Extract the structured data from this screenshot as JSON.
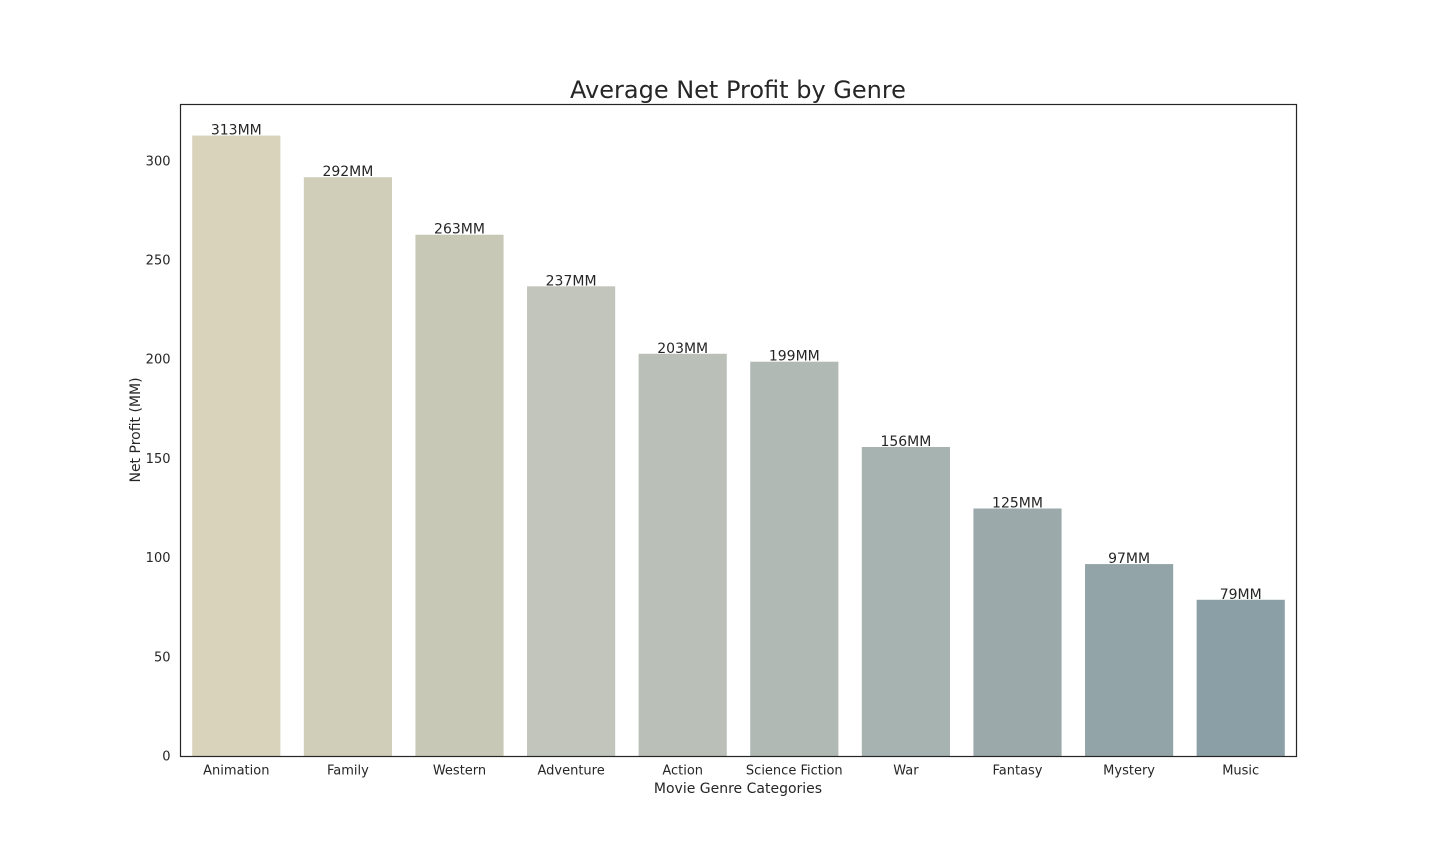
{
  "chart_data": {
    "type": "bar",
    "title": "Average Net Profit by Genre",
    "xlabel": "Movie Genre Categories",
    "ylabel": "Net Profit (MM)",
    "categories": [
      "Animation",
      "Family",
      "Western",
      "Adventure",
      "Action",
      "Science Fiction",
      "War",
      "Fantasy",
      "Mystery",
      "Music"
    ],
    "values": [
      313,
      292,
      263,
      237,
      203,
      199,
      156,
      125,
      97,
      79
    ],
    "data_labels": [
      "313MM",
      "292MM",
      "263MM",
      "237MM",
      "203MM",
      "199MM",
      "156MM",
      "125MM",
      "97MM",
      "79MM"
    ],
    "colors": [
      "#d9d3bb",
      "#d0cdb9",
      "#c8c8b7",
      "#c1c5bb",
      "#bac0b8",
      "#b1b9b4",
      "#a7b3b1",
      "#9ca9ab",
      "#93a4a8",
      "#8aa0a6"
    ],
    "yticks": [
      0,
      50,
      100,
      150,
      200,
      250,
      300
    ],
    "ylim": [
      0,
      328.65
    ],
    "grid": false,
    "legend": "none"
  }
}
